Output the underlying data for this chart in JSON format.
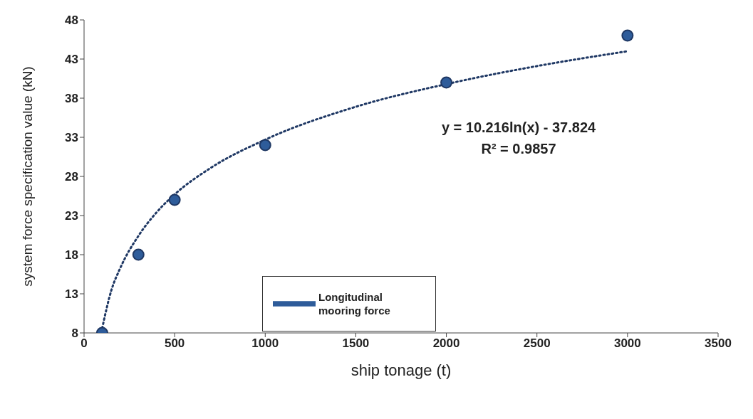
{
  "chart_data": {
    "type": "scatter",
    "xlabel": "ship tonage (t)",
    "ylabel": "system force specification value (kN)",
    "xlim": [
      0,
      3500
    ],
    "xticks": [
      0,
      500,
      1000,
      1500,
      2000,
      2500,
      3000,
      3500
    ],
    "ylim": [
      8,
      48
    ],
    "yticks": [
      8,
      13,
      18,
      23,
      28,
      33,
      38,
      43,
      48
    ],
    "grid": false,
    "legend": "bottom",
    "marker": "circle",
    "annotations": [
      "y = 10.216ln(x) - 37.824",
      "R² = 0.9857"
    ],
    "series": [
      {
        "name": "Longitudinal mooring force",
        "color": "#2e5c9a",
        "x": [
          100,
          300,
          500,
          1000,
          2000,
          3000
        ],
        "values": [
          8,
          18,
          25,
          32,
          40,
          46
        ]
      },
      {
        "type": "line",
        "color": "#1f3864",
        "line_style": "dotted",
        "marker": "none",
        "x": [
          100,
          150,
          200,
          300,
          400,
          500,
          700,
          1000,
          1500,
          2000,
          2500,
          3000
        ],
        "values": [
          8.6,
          13.4,
          16.3,
          20.4,
          23.4,
          25.7,
          29.1,
          32.7,
          36.9,
          39.8,
          42.1,
          44
        ]
      }
    ]
  }
}
